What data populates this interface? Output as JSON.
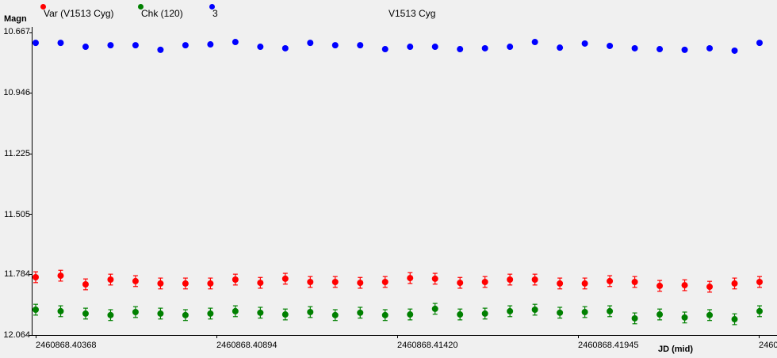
{
  "window": {
    "title": "V1513 Cyg"
  },
  "legend": [
    {
      "label": "Var (V1513 Cyg)",
      "color": "#FF0000",
      "x": 55
    },
    {
      "label": "Chk (120)",
      "color": "#008000",
      "x": 178
    },
    {
      "label": "3",
      "color": "#0000FF",
      "x": 268
    }
  ],
  "colors": {
    "background": "#F0F0F0",
    "axis": "#000000",
    "var": "#FF0000",
    "chk": "#008000",
    "comp": "#0000FF"
  },
  "chart_data": {
    "type": "scatter",
    "title": "V1513 Cyg",
    "xlabel": "JD (mid)",
    "ylabel": "Magn",
    "y_inverted": true,
    "ylim": [
      10.667,
      12.064
    ],
    "y_ticks": [
      "10.667",
      "10.946",
      "11.225",
      "11.505",
      "11.784",
      "12.064"
    ],
    "x_ticks": [
      "2460868.40368",
      "2460868.40894",
      "2460868.41420",
      "2460868.41945",
      "2460"
    ],
    "xlim": [
      2460868.40368,
      2460868.42471
    ],
    "grid": false,
    "legend_position": "top",
    "x": [
      2460868.40368,
      2460868.4044,
      2460868.40513,
      2460868.40585,
      2460868.40658,
      2460868.4073,
      2460868.40803,
      2460868.40875,
      2460868.40948,
      2460868.4102,
      2460868.41093,
      2460868.41165,
      2460868.41238,
      2460868.4131,
      2460868.41383,
      2460868.41456,
      2460868.41528,
      2460868.41601,
      2460868.41673,
      2460868.41746,
      2460868.41818,
      2460868.41891,
      2460868.41963,
      2460868.42036,
      2460868.42108,
      2460868.42181,
      2460868.42253,
      2460868.42326,
      2460868.42398,
      2460868.42471
    ],
    "series": [
      {
        "name": "Var (V1513 Cyg)",
        "color": "#FF0000",
        "error_bars": true,
        "error": 0.025,
        "values": [
          11.797,
          11.79,
          11.83,
          11.808,
          11.815,
          11.826,
          11.826,
          11.826,
          11.808,
          11.823,
          11.804,
          11.819,
          11.819,
          11.823,
          11.819,
          11.801,
          11.804,
          11.823,
          11.819,
          11.808,
          11.808,
          11.826,
          11.826,
          11.815,
          11.819,
          11.837,
          11.834,
          11.841,
          11.826,
          11.819
        ]
      },
      {
        "name": "Chk (120)",
        "color": "#008000",
        "error_bars": true,
        "error": 0.025,
        "values": [
          11.947,
          11.954,
          11.965,
          11.972,
          11.958,
          11.965,
          11.972,
          11.965,
          11.954,
          11.961,
          11.969,
          11.958,
          11.972,
          11.961,
          11.972,
          11.969,
          11.943,
          11.969,
          11.965,
          11.954,
          11.947,
          11.961,
          11.958,
          11.954,
          11.987,
          11.969,
          11.983,
          11.972,
          11.991,
          11.954
        ]
      },
      {
        "name": "3",
        "color": "#0000FF",
        "error_bars": false,
        "values": [
          10.715,
          10.715,
          10.733,
          10.726,
          10.726,
          10.747,
          10.726,
          10.722,
          10.711,
          10.733,
          10.74,
          10.715,
          10.726,
          10.726,
          10.744,
          10.733,
          10.733,
          10.744,
          10.74,
          10.733,
          10.711,
          10.737,
          10.718,
          10.729,
          10.74,
          10.744,
          10.747,
          10.74,
          10.751,
          10.715
        ]
      }
    ]
  }
}
